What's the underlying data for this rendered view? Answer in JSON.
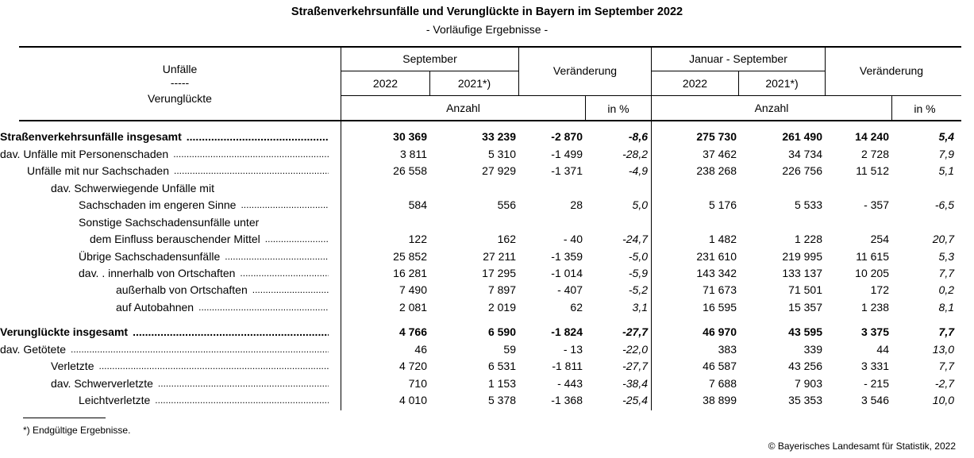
{
  "title": "Straßenverkehrsunfälle und Verunglückte in Bayern im September 2022",
  "subtitle": "- Vorläufige Ergebnisse -",
  "header": {
    "stub_top": "Unfälle",
    "stub_mid": "-----",
    "stub_bottom": "Verunglückte",
    "sep_group": "September",
    "sep_2022": "2022",
    "sep_2021": "2021*)",
    "change1": "Veränderung",
    "anzahl1": "Anzahl",
    "pct1": "in %",
    "js_group": "Januar - September",
    "js_2022": "2022",
    "js_2021": "2021*)",
    "change2": "Veränderung",
    "anzahl2": "Anzahl",
    "pct2": "in %"
  },
  "rows": [
    {
      "label": "Straßenverkehrsunfälle insgesamt",
      "indent": 0,
      "bold": true,
      "dots": true,
      "values": [
        "30 369",
        "33 239",
        "-2 870",
        "-8,6",
        "275 730",
        "261 490",
        "14 240",
        "5,4"
      ]
    },
    {
      "label": "dav. Unfälle mit Personenschaden",
      "indent": 0,
      "bold": false,
      "dots": true,
      "values": [
        "3 811",
        "5 310",
        "-1 499",
        "-28,2",
        "37 462",
        "34 734",
        "2 728",
        "7,9"
      ]
    },
    {
      "label": "Unfälle mit nur Sachschaden",
      "indent": 34,
      "bold": false,
      "dots": true,
      "values": [
        "26 558",
        "27 929",
        "-1 371",
        "-4,9",
        "238 268",
        "226 756",
        "11 512",
        "5,1"
      ]
    },
    {
      "label": "dav. Schwerwiegende Unfälle mit",
      "indent": 64,
      "bold": false,
      "dots": false,
      "values": [
        "",
        "",
        "",
        "",
        "",
        "",
        "",
        ""
      ]
    },
    {
      "label": "Sachschaden im engeren Sinne",
      "indent": 99,
      "bold": false,
      "dots": true,
      "values": [
        "584",
        "556",
        "28",
        "5,0",
        "5 176",
        "5 533",
        "- 357",
        "-6,5"
      ]
    },
    {
      "label": "Sonstige Sachschadensunfälle unter",
      "indent": 99,
      "bold": false,
      "dots": false,
      "values": [
        "",
        "",
        "",
        "",
        "",
        "",
        "",
        ""
      ]
    },
    {
      "label": "dem Einfluss berauschender Mittel",
      "indent": 113,
      "bold": false,
      "dots": true,
      "values": [
        "122",
        "162",
        "- 40",
        "-24,7",
        "1 482",
        "1 228",
        "254",
        "20,7"
      ]
    },
    {
      "label": "Übrige Sachschadensunfälle",
      "indent": 99,
      "bold": false,
      "dots": true,
      "values": [
        "25 852",
        "27 211",
        "-1 359",
        "-5,0",
        "231 610",
        "219 995",
        "11 615",
        "5,3"
      ]
    },
    {
      "label": "dav. .  innerhalb von Ortschaften",
      "indent": 99,
      "bold": false,
      "dots": true,
      "values": [
        "16 281",
        "17 295",
        "-1 014",
        "-5,9",
        "143 342",
        "133 137",
        "10 205",
        "7,7"
      ]
    },
    {
      "label": "außerhalb von Ortschaften",
      "indent": 146,
      "bold": false,
      "dots": true,
      "values": [
        "7 490",
        "7 897",
        "- 407",
        "-5,2",
        "71 673",
        "71 501",
        "172",
        "0,2"
      ]
    },
    {
      "label": "auf Autobahnen",
      "indent": 146,
      "bold": false,
      "dots": true,
      "values": [
        "2 081",
        "2 019",
        "62",
        "3,1",
        "16 595",
        "15 357",
        "1 238",
        "8,1"
      ]
    },
    {
      "label": "Verunglückte insgesamt",
      "indent": 0,
      "bold": true,
      "dots": true,
      "values": [
        "4 766",
        "6 590",
        "-1 824",
        "-27,7",
        "46 970",
        "43 595",
        "3 375",
        "7,7"
      ]
    },
    {
      "label": "dav.  Getötete",
      "indent": 0,
      "bold": false,
      "dots": true,
      "values": [
        "46",
        "59",
        "- 13",
        "-22,0",
        "383",
        "339",
        "44",
        "13,0"
      ]
    },
    {
      "label": "Verletzte",
      "indent": 64,
      "bold": false,
      "dots": true,
      "values": [
        "4 720",
        "6 531",
        "-1 811",
        "-27,7",
        "46 587",
        "43 256",
        "3 331",
        "7,7"
      ]
    },
    {
      "label": "dav. Schwerverletzte",
      "indent": 64,
      "bold": false,
      "dots": true,
      "values": [
        "710",
        "1 153",
        "- 443",
        "-38,4",
        "7 688",
        "7 903",
        "- 215",
        "-2,7"
      ]
    },
    {
      "label": "Leichtverletzte",
      "indent": 99,
      "bold": false,
      "dots": true,
      "values": [
        "4 010",
        "5 378",
        "-1 368",
        "-25,4",
        "38 899",
        "35 353",
        "3 546",
        "10,0"
      ]
    }
  ],
  "footnote": "*) Endgültige Ergebnisse.",
  "copyright": "© Bayerisches Landesamt für Statistik, 2022"
}
